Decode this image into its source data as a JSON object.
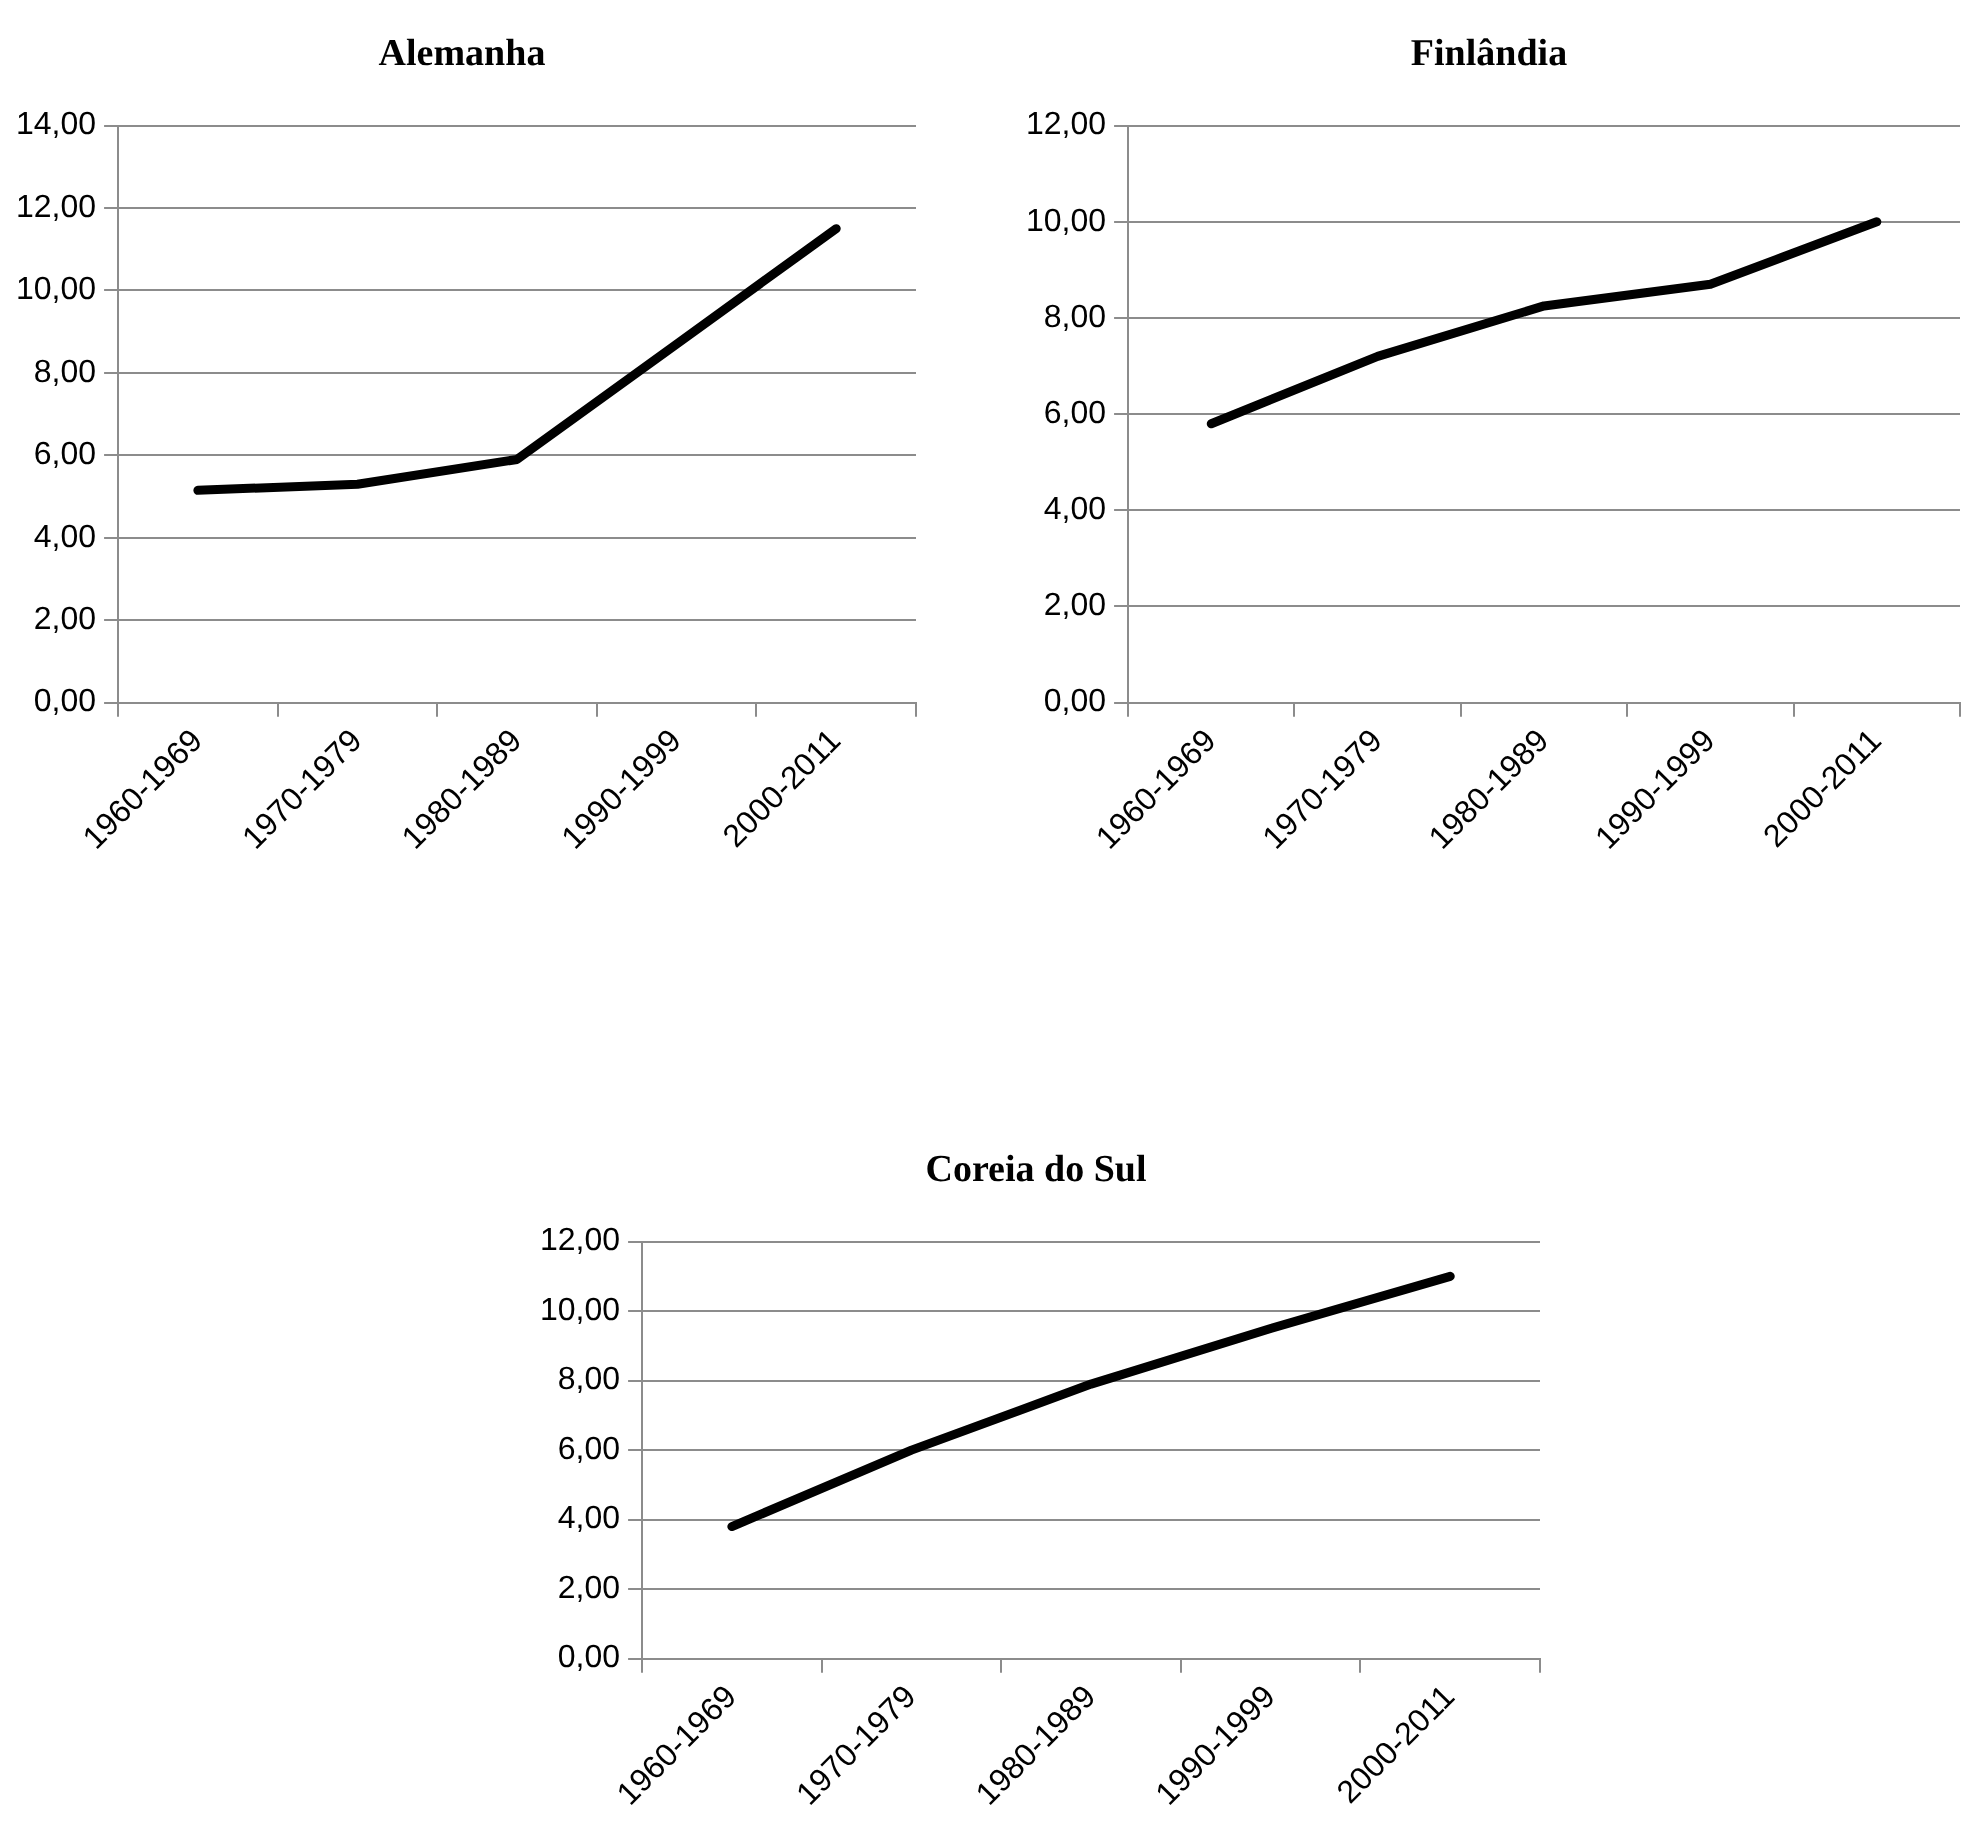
{
  "chart_data": [
    {
      "type": "line",
      "title": "Alemanha",
      "categories": [
        "1960-1969",
        "1970-1979",
        "1980-1989",
        "1990-1999",
        "2000-2011"
      ],
      "values": [
        5.15,
        5.3,
        5.9,
        8.7,
        11.5
      ],
      "color": "#000000",
      "ylim": [
        0,
        14
      ],
      "yticks": [
        {
          "value": 0,
          "label": "0,00"
        },
        {
          "value": 2,
          "label": "2,00"
        },
        {
          "value": 4,
          "label": "4,00"
        },
        {
          "value": 6,
          "label": "6,00"
        },
        {
          "value": 8,
          "label": "8,00"
        },
        {
          "value": 10,
          "label": "10,00"
        },
        {
          "value": 12,
          "label": "12,00"
        },
        {
          "value": 14,
          "label": "14,00"
        }
      ],
      "grid": "y",
      "marker": "none",
      "line_style": "solid"
    },
    {
      "type": "line",
      "title": "Finlândia",
      "categories": [
        "1960-1969",
        "1970-1979",
        "1980-1989",
        "1990-1999",
        "2000-2011"
      ],
      "values": [
        5.8,
        7.2,
        8.25,
        8.7,
        10.0
      ],
      "color": "#000000",
      "ylim": [
        0,
        12
      ],
      "yticks": [
        {
          "value": 0,
          "label": "0,00"
        },
        {
          "value": 2,
          "label": "2,00"
        },
        {
          "value": 4,
          "label": "4,00"
        },
        {
          "value": 6,
          "label": "6,00"
        },
        {
          "value": 8,
          "label": "8,00"
        },
        {
          "value": 10,
          "label": "10,00"
        },
        {
          "value": 12,
          "label": "12,00"
        }
      ],
      "grid": "y",
      "marker": "none",
      "line_style": "solid"
    },
    {
      "type": "line",
      "title": "Coreia do Sul",
      "categories": [
        "1960-1969",
        "1970-1979",
        "1980-1989",
        "1990-1999",
        "2000-2011"
      ],
      "values": [
        3.8,
        6.0,
        7.9,
        9.5,
        11.0
      ],
      "color": "#000000",
      "ylim": [
        0,
        12
      ],
      "yticks": [
        {
          "value": 0,
          "label": "0,00"
        },
        {
          "value": 2,
          "label": "2,00"
        },
        {
          "value": 4,
          "label": "4,00"
        },
        {
          "value": 6,
          "label": "6,00"
        },
        {
          "value": 8,
          "label": "8,00"
        },
        {
          "value": 10,
          "label": "10,00"
        },
        {
          "value": 12,
          "label": "12,00"
        }
      ],
      "grid": "y",
      "marker": "none",
      "line_style": "solid"
    }
  ]
}
